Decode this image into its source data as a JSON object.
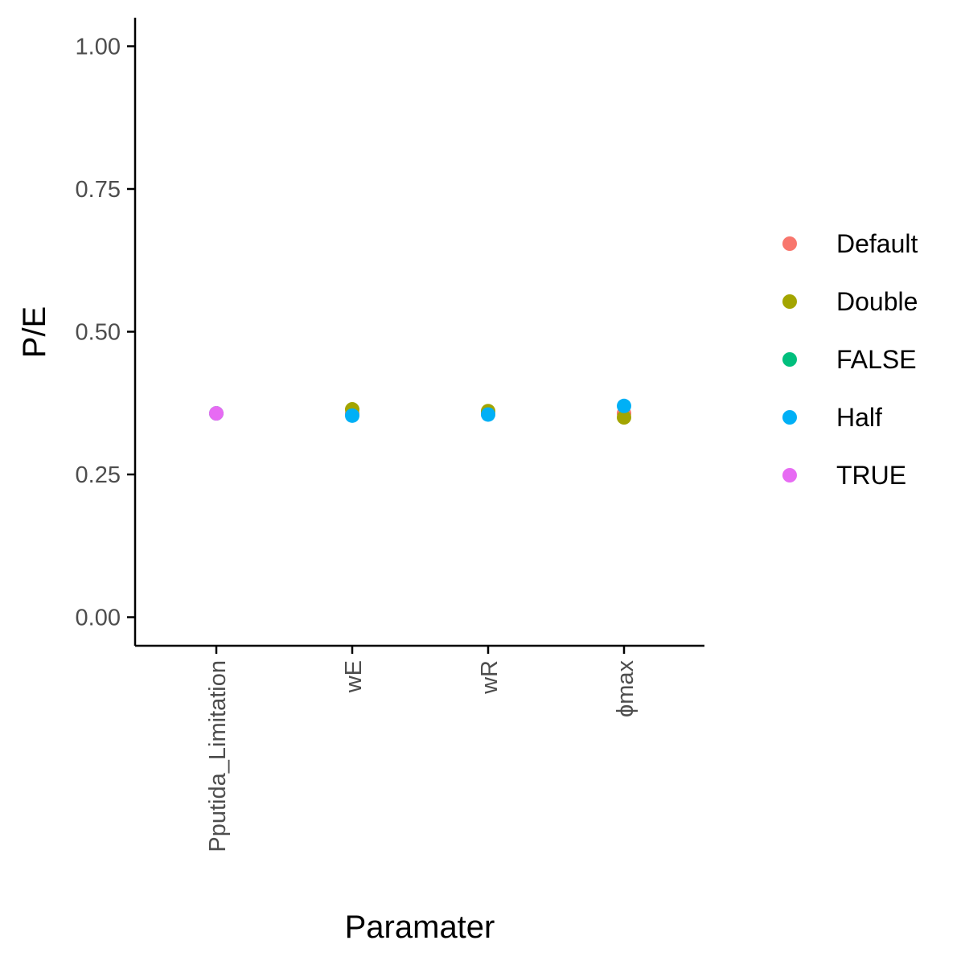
{
  "chart_data": {
    "type": "scatter",
    "xlabel": "Paramater",
    "ylabel": "P/E",
    "categories": [
      "Pputida_Limitation",
      "wE",
      "wR",
      "ϕmax"
    ],
    "ylim": [
      -0.05,
      1.05
    ],
    "yticks": [
      0.0,
      0.25,
      0.5,
      0.75,
      1.0
    ],
    "ytick_labels": [
      "0.00",
      "0.25",
      "0.50",
      "0.75",
      "1.00"
    ],
    "grid": false,
    "legend_position": "right",
    "series": [
      {
        "name": "Default",
        "color": "#F8766D",
        "points": [
          {
            "x": "wE",
            "y": 0.357
          },
          {
            "x": "wR",
            "y": 0.357
          },
          {
            "x": "ϕmax",
            "y": 0.357
          }
        ]
      },
      {
        "name": "Double",
        "color": "#A3A500",
        "points": [
          {
            "x": "wE",
            "y": 0.364
          },
          {
            "x": "wR",
            "y": 0.361
          },
          {
            "x": "ϕmax",
            "y": 0.35
          }
        ]
      },
      {
        "name": "FALSE",
        "color": "#00BF7D",
        "points": [
          {
            "x": "Pputida_Limitation",
            "y": 0.357
          }
        ]
      },
      {
        "name": "Half",
        "color": "#00B0F6",
        "points": [
          {
            "x": "wE",
            "y": 0.353
          },
          {
            "x": "wR",
            "y": 0.355
          },
          {
            "x": "ϕmax",
            "y": 0.37
          }
        ]
      },
      {
        "name": "TRUE",
        "color": "#E76BF3",
        "points": [
          {
            "x": "Pputida_Limitation",
            "y": 0.357
          }
        ]
      }
    ]
  }
}
